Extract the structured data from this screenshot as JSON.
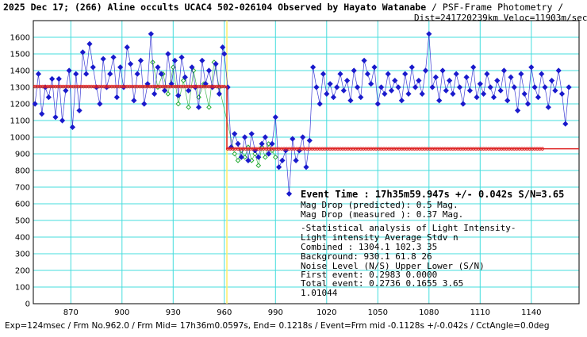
{
  "header": {
    "title": "2025 Dec 17; (266) Aline occults UCAC4 502-026104 Observed by Hayato Watanabe",
    "subtitle": " / PSF-Frame Photometry /",
    "dist": "Dist=241720239km Veloc=11903m/sec"
  },
  "footer": "Exp=124msec / Frm No.962.0 / Frm Mid= 17h36m0.0597s, End= 0.1218s / Event=Frm mid -0.1128s +/-0.042s / CctAngle=0.0deg",
  "stats": {
    "event_time": "Event Time : 17h35m59.947s  +/- 0.042s  S/N=3.65",
    "mag_pred": "Mag Drop (predicted):  0.5   Mag.",
    "mag_meas": "Mag Drop (measured ):  0.37  Mag.",
    "stat_title": "-Statistical analysis of Light Intensity-",
    "hdr_row": "Light intensity     Average    Stdv       n",
    "combined": "  Combined  :         1304.1     102.3     35",
    "background": "  Background:          930.1      61.8     26",
    "noise_hdr": "Noise Level (N/S)    Upper     Lower    (S/N)",
    "first": "   First event:       0.2983    0.0000",
    "total": "   Total event:       0.2736    0.1655    3.65",
    "misc": "1.01044"
  },
  "colors": {
    "main": "#1a1acc",
    "comp": "#22aa33",
    "fit": "#dd2222",
    "grid": "#44dddd",
    "event": "#ffee66"
  },
  "chart_data": {
    "type": "scatter",
    "xlim": [
      848,
      1168
    ],
    "ylim": [
      0,
      1700
    ],
    "xticks": [
      870,
      900,
      930,
      960,
      990,
      1020,
      1050,
      1080,
      1110,
      1140
    ],
    "yticks": [
      0,
      100,
      200,
      300,
      400,
      500,
      600,
      700,
      800,
      900,
      1000,
      1100,
      1200,
      1300,
      1400,
      1500,
      1600
    ],
    "event_frame": 961.5,
    "fit_levels": {
      "pre": 1304.1,
      "post": 930.1
    },
    "grid": true,
    "series": [
      {
        "x": [
          849,
          851,
          853,
          855,
          857,
          859,
          861,
          863,
          865,
          867,
          869,
          871,
          873,
          875,
          877,
          879,
          881,
          883,
          885,
          887,
          889,
          891,
          893,
          895,
          897,
          899,
          901,
          903,
          905,
          907,
          909,
          911,
          913,
          915,
          917,
          919,
          921,
          923,
          925,
          927,
          929,
          931,
          933,
          935,
          937,
          939,
          941,
          943,
          945,
          947,
          949,
          951,
          953,
          955,
          957,
          959,
          960,
          962,
          964,
          966,
          968,
          970,
          972,
          974,
          976,
          978,
          980,
          982,
          984,
          986,
          988,
          990,
          992,
          994,
          996,
          998,
          1000,
          1002,
          1004,
          1006,
          1008,
          1010,
          1012,
          1014,
          1016,
          1018,
          1020,
          1022,
          1024,
          1026,
          1028,
          1030,
          1032,
          1034,
          1036,
          1038,
          1040,
          1042,
          1044,
          1046,
          1048,
          1050,
          1052,
          1054,
          1056,
          1058,
          1060,
          1062,
          1064,
          1066,
          1068,
          1070,
          1072,
          1074,
          1076,
          1078,
          1080,
          1082,
          1084,
          1086,
          1088,
          1090,
          1092,
          1094,
          1096,
          1098,
          1100,
          1102,
          1104,
          1106,
          1108,
          1110,
          1112,
          1114,
          1116,
          1118,
          1120,
          1122,
          1124,
          1126,
          1128,
          1130,
          1132,
          1134,
          1136,
          1138,
          1140,
          1142,
          1144,
          1146,
          1148,
          1150,
          1152,
          1154,
          1156,
          1158,
          1160,
          1162
        ],
        "y": [
          1200,
          1380,
          1140,
          1300,
          1240,
          1350,
          1120,
          1350,
          1100,
          1280,
          1400,
          1060,
          1380,
          1160,
          1510,
          1380,
          1560,
          1420,
          1300,
          1200,
          1470,
          1300,
          1380,
          1480,
          1240,
          1420,
          1300,
          1540,
          1440,
          1220,
          1380,
          1460,
          1200,
          1320,
          1620,
          1260,
          1420,
          1380,
          1280,
          1500,
          1320,
          1460,
          1250,
          1480,
          1360,
          1280,
          1420,
          1300,
          1180,
          1460,
          1320,
          1400,
          1300,
          1440,
          1260,
          1540,
          1500,
          1300,
          940,
          1020,
          960,
          880,
          1000,
          860,
          1020,
          920,
          880,
          960,
          1000,
          900,
          960,
          1120,
          820,
          860,
          920,
          660,
          990,
          860,
          920,
          1000,
          820,
          980,
          1420,
          1300,
          1200,
          1380,
          1260,
          1320,
          1240,
          1300,
          1380,
          1280,
          1340,
          1220,
          1400,
          1300,
          1240,
          1460,
          1380,
          1320,
          1420,
          1200,
          1300,
          1260,
          1380,
          1280,
          1340,
          1300,
          1220,
          1380,
          1260,
          1420,
          1300,
          1340,
          1260,
          1400,
          1620,
          1300,
          1360,
          1220,
          1400,
          1280,
          1340,
          1260,
          1380,
          1300,
          1200,
          1360,
          1280,
          1420,
          1240,
          1320,
          1260,
          1380,
          1300,
          1240,
          1340,
          1280,
          1400,
          1220,
          1360,
          1300,
          1160,
          1380,
          1260,
          1200,
          1420,
          1300,
          1240,
          1380,
          1300,
          1180,
          1340,
          1280,
          1400,
          1260,
          1080,
          1300
        ]
      },
      {
        "x": [
          918,
          921,
          924,
          927,
          930,
          933,
          936,
          939,
          942,
          945,
          948,
          951,
          954,
          957,
          966,
          968,
          970,
          972,
          974,
          976,
          978,
          980,
          982,
          984,
          986,
          988,
          990
        ],
        "y": [
          1450,
          1300,
          1380,
          1260,
          1420,
          1200,
          1340,
          1180,
          1400,
          1240,
          1320,
          1180,
          1450,
          1300,
          900,
          860,
          920,
          880,
          940,
          860,
          900,
          830,
          940,
          880,
          960,
          920,
          880
        ]
      }
    ]
  }
}
